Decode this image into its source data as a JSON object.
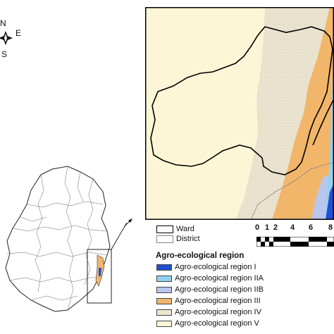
{
  "compass": {
    "north": "N",
    "east": "E",
    "south": "S"
  },
  "scale_bar": {
    "ticks": [
      "0",
      "1",
      "2",
      "4",
      "6",
      "8"
    ]
  },
  "legend": {
    "ward_label": "Ward",
    "district_label": "District",
    "title": "Agro-ecological region",
    "regions": [
      {
        "label": "Agro-ecological region I",
        "color": "#1f4fd1"
      },
      {
        "label": "Agro-ecological region IIA",
        "color": "#8fd3f2"
      },
      {
        "label": "Agro-ecological region IIB",
        "color": "#b9c6ee"
      },
      {
        "label": "Agro-ecological region III",
        "color": "#f2b66a"
      },
      {
        "label": "Agro-ecological region IV",
        "color": "#ede6d2"
      },
      {
        "label": "Agro-ecological region V",
        "color": "#fdf6d6"
      }
    ]
  },
  "colors": {
    "region_I": "#1f4fd1",
    "region_IIA": "#8fd3f2",
    "region_IIB": "#b9c6ee",
    "region_III": "#f2b66a",
    "region_IV": "#ede6d2",
    "region_V": "#fdf6d6",
    "ward_outline": "#000000",
    "district_outline": "#888888"
  }
}
